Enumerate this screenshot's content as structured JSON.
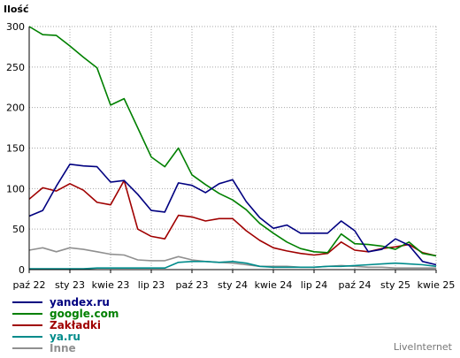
{
  "chart_data": {
    "type": "line",
    "ylabel": "Ilość",
    "ylim": [
      0,
      300
    ],
    "yticks": [
      0,
      50,
      100,
      150,
      200,
      250,
      300
    ],
    "grid": true,
    "legend_position": "bottom-left",
    "x": [
      "2022-10",
      "2022-11",
      "2022-12",
      "2023-01",
      "2023-02",
      "2023-03",
      "2023-04",
      "2023-05",
      "2023-06",
      "2023-07",
      "2023-08",
      "2023-09",
      "2023-10",
      "2023-11",
      "2023-12",
      "2024-01",
      "2024-02",
      "2024-03",
      "2024-04",
      "2024-05",
      "2024-06",
      "2024-07",
      "2024-08",
      "2024-09",
      "2024-10",
      "2024-11",
      "2024-12",
      "2025-01",
      "2025-02",
      "2025-03",
      "2025-04"
    ],
    "xticks": [
      {
        "at": "2022-10",
        "label": "paź 22"
      },
      {
        "at": "2023-01",
        "label": "sty 23"
      },
      {
        "at": "2023-04",
        "label": "kwie 23"
      },
      {
        "at": "2023-07",
        "label": "lip 23"
      },
      {
        "at": "2023-10",
        "label": "paź 23"
      },
      {
        "at": "2024-01",
        "label": "sty 24"
      },
      {
        "at": "2024-04",
        "label": "kwie 24"
      },
      {
        "at": "2024-07",
        "label": "lip 24"
      },
      {
        "at": "2024-10",
        "label": "paź 24"
      },
      {
        "at": "2025-01",
        "label": "sty 25"
      },
      {
        "at": "2025-04",
        "label": "kwie 25"
      }
    ],
    "series": [
      {
        "name": "yandex.ru",
        "color": "#000080",
        "values": [
          66,
          73,
          103,
          130,
          128,
          127,
          108,
          110,
          93,
          73,
          71,
          107,
          104,
          95,
          106,
          111,
          84,
          64,
          51,
          55,
          45,
          45,
          45,
          60,
          48,
          22,
          25,
          38,
          30,
          10,
          6
        ]
      },
      {
        "name": "google.com",
        "color": "#008000",
        "values": [
          300,
          290,
          289,
          276,
          262,
          249,
          203,
          211,
          175,
          139,
          127,
          150,
          117,
          105,
          94,
          86,
          74,
          57,
          45,
          34,
          26,
          22,
          21,
          44,
          32,
          31,
          29,
          25,
          34,
          20,
          17
        ]
      },
      {
        "name": "Zakładki",
        "color": "#a00000",
        "values": [
          87,
          101,
          97,
          106,
          98,
          83,
          80,
          110,
          50,
          41,
          38,
          67,
          65,
          60,
          63,
          63,
          48,
          36,
          27,
          23,
          20,
          18,
          20,
          34,
          24,
          22,
          26,
          28,
          31,
          21,
          17
        ]
      },
      {
        "name": "ya.ru",
        "color": "#008b8b",
        "values": [
          1,
          1,
          1,
          1,
          1,
          2,
          2,
          2,
          2,
          2,
          2,
          9,
          10,
          10,
          9,
          10,
          8,
          4,
          3,
          3,
          3,
          3,
          4,
          4,
          5,
          6,
          7,
          8,
          7,
          6,
          4
        ]
      },
      {
        "name": "Inne",
        "color": "#909090",
        "values": [
          24,
          27,
          22,
          27,
          25,
          22,
          19,
          18,
          12,
          11,
          11,
          16,
          12,
          10,
          9,
          8,
          6,
          4,
          4,
          4,
          3,
          3,
          4,
          5,
          4,
          3,
          3,
          2,
          2,
          2,
          2
        ]
      }
    ]
  },
  "footer": {
    "brand": "LiveInternet"
  }
}
